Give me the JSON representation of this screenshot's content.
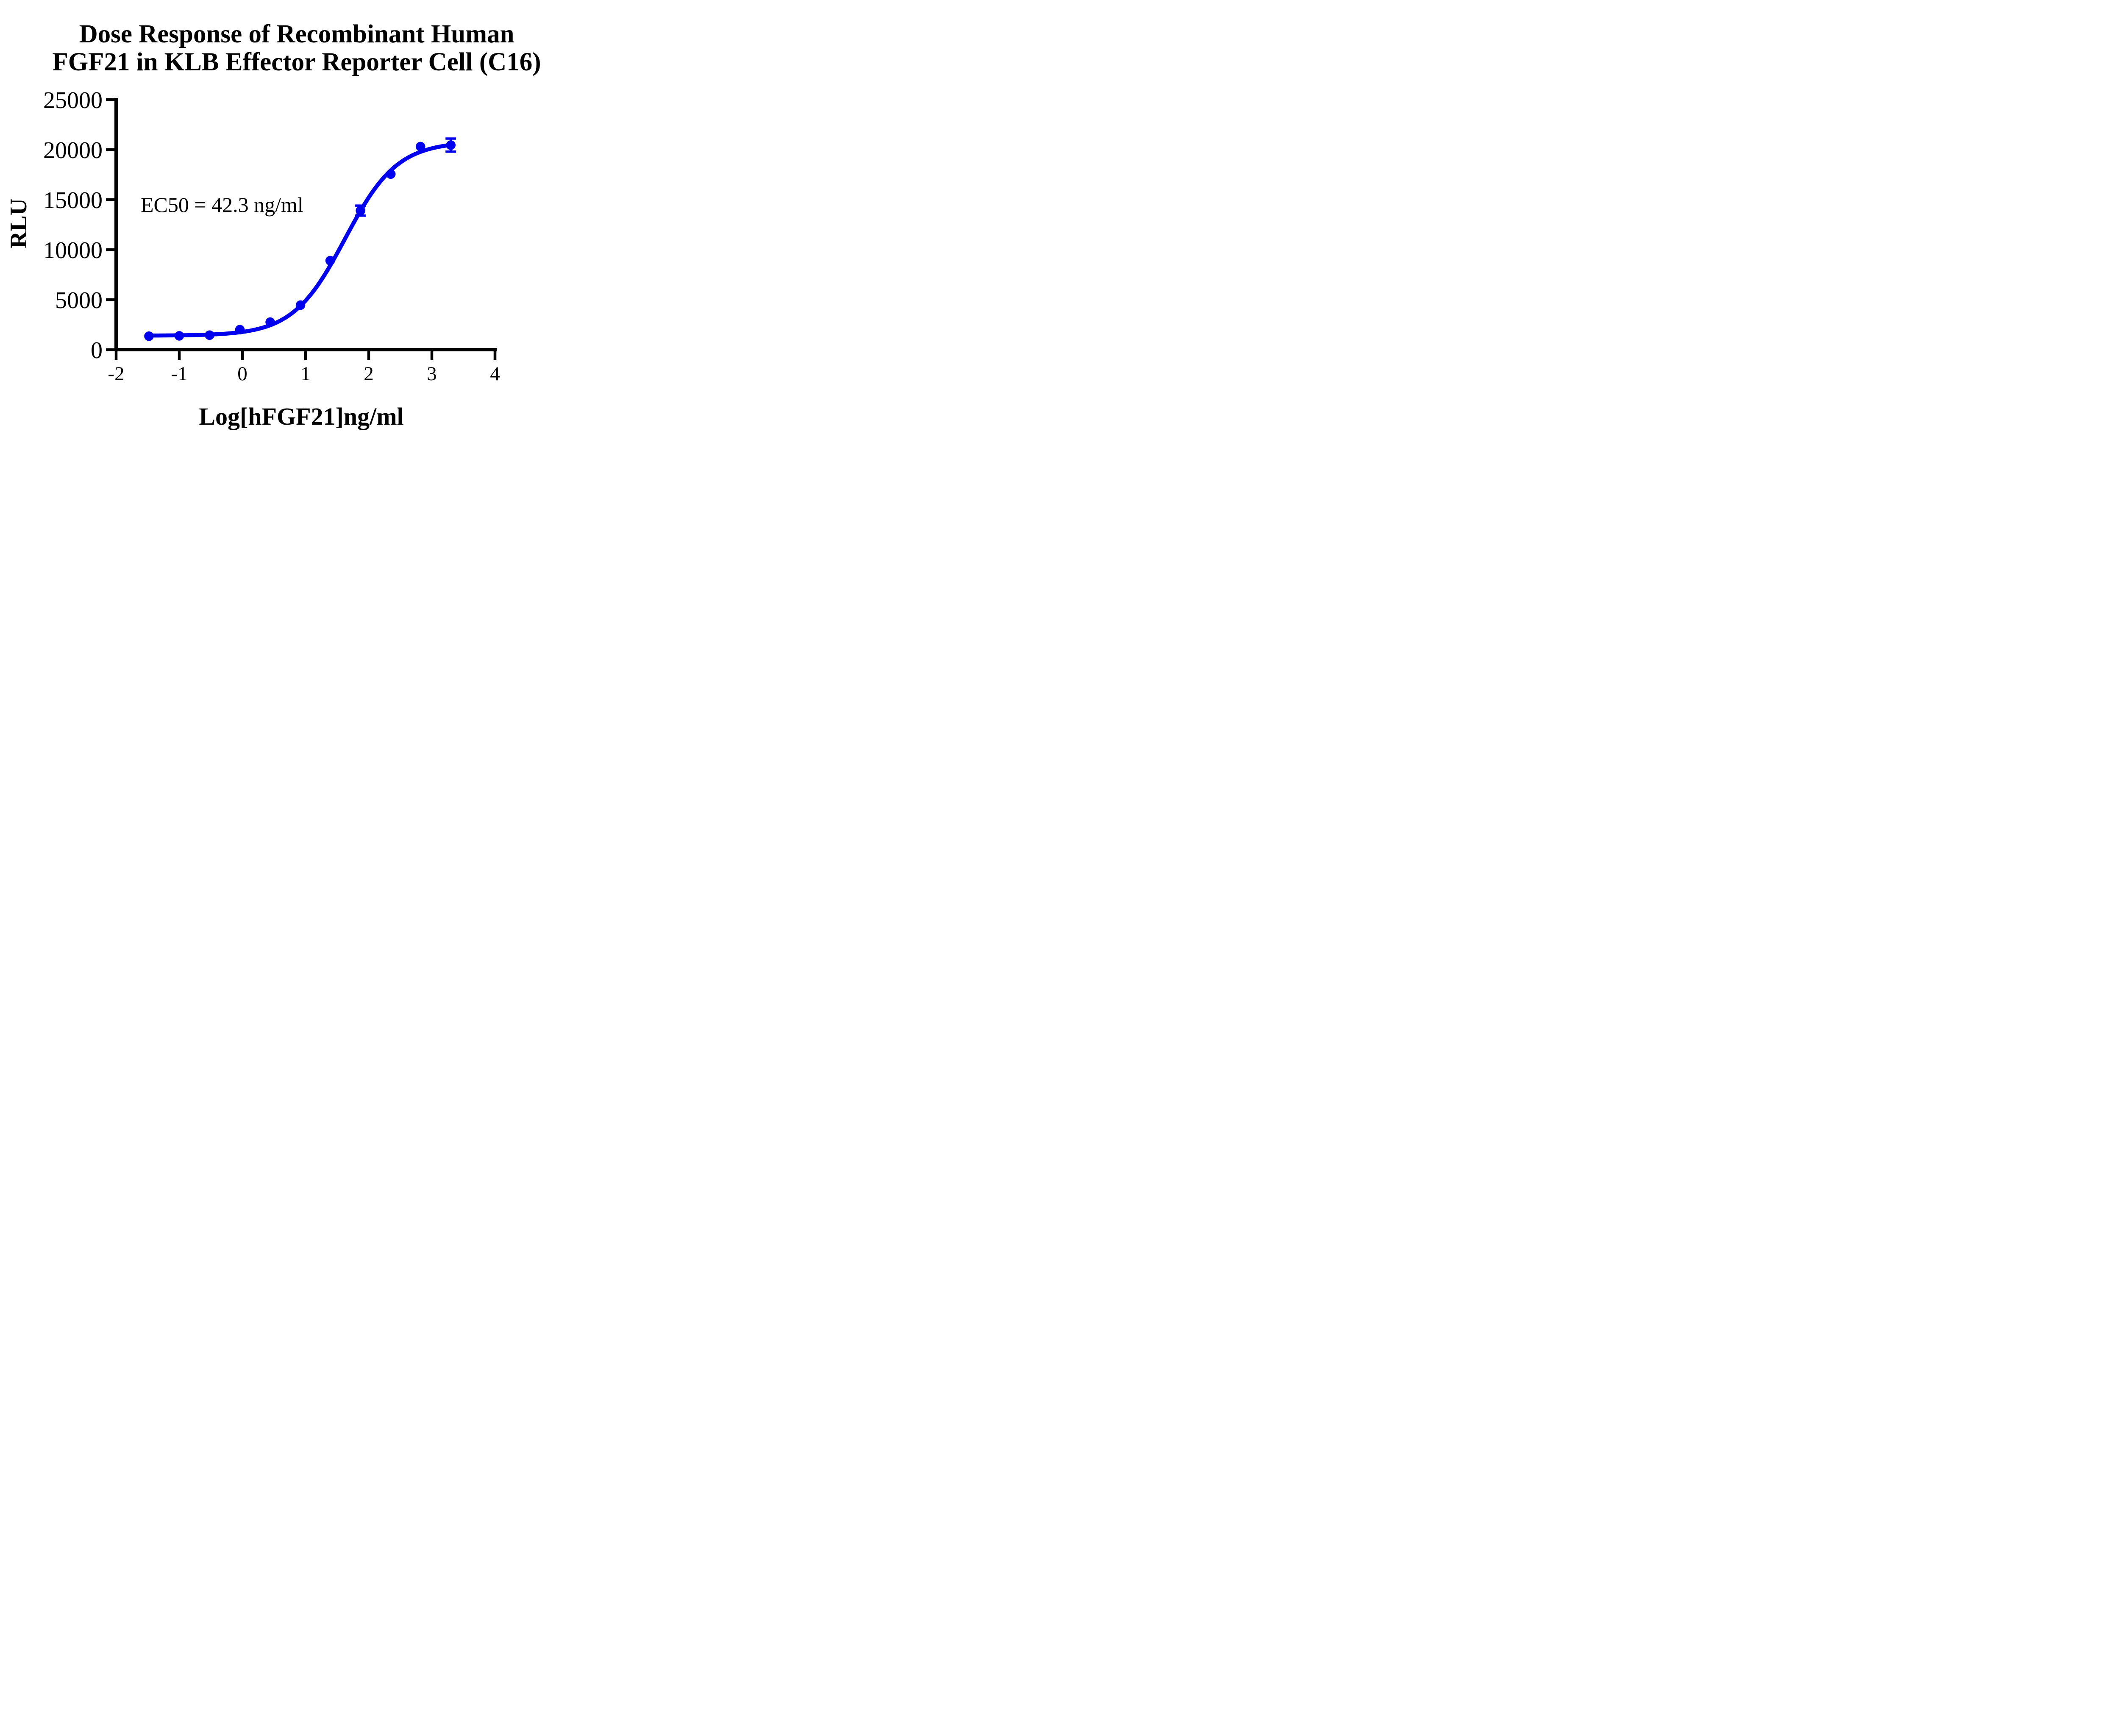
{
  "chart_data": {
    "type": "scatter",
    "title_lines": [
      "Dose Response of Recombinant Human",
      "FGF21 in KLB Effector Reporter Cell (C16)"
    ],
    "annotation": "EC50 = 42.3 ng/ml",
    "ec50_value_ng_ml": 42.3,
    "xlabel": "Log[hFGF21]ng/ml",
    "ylabel": "RLU",
    "xlim": [
      -2,
      4
    ],
    "ylim": [
      0,
      25000
    ],
    "x_ticks": [
      -2,
      -1,
      0,
      1,
      2,
      3,
      4
    ],
    "y_ticks": [
      0,
      5000,
      10000,
      15000,
      20000,
      25000
    ],
    "grid": false,
    "legend_position": "none",
    "series_color": "#0000EE",
    "axis_color": "#000000",
    "points": {
      "x": [
        -1.48,
        -1.0,
        -0.52,
        -0.04,
        0.44,
        0.92,
        1.39,
        1.87,
        2.35,
        2.82,
        3.3
      ],
      "y": [
        1350,
        1380,
        1450,
        2000,
        2750,
        4450,
        8900,
        13900,
        17550,
        20300,
        20450
      ],
      "yerr": [
        0,
        0,
        0,
        0,
        0,
        0,
        0,
        500,
        0,
        0,
        650
      ]
    },
    "fit_curve": {
      "model": "4PL-sigmoid",
      "bottom": 1400,
      "top": 20800,
      "logEC50": 1.626,
      "hill": 1.05,
      "x_start": -1.48,
      "x_end": 3.3
    }
  }
}
